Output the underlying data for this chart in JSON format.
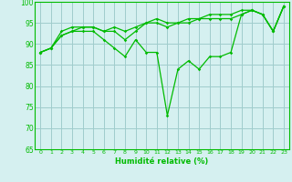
{
  "line1": [
    88,
    89,
    92,
    93,
    93,
    93,
    91,
    89,
    87,
    91,
    88,
    88,
    73,
    84,
    86,
    84,
    87,
    87,
    88,
    97,
    98,
    97,
    93,
    99
  ],
  "line2": [
    88,
    89,
    92,
    93,
    94,
    94,
    93,
    93,
    91,
    93,
    95,
    95,
    94,
    95,
    95,
    96,
    96,
    96,
    96,
    97,
    98,
    97,
    93,
    99
  ],
  "line3": [
    88,
    89,
    93,
    94,
    94,
    94,
    93,
    94,
    93,
    94,
    95,
    96,
    95,
    95,
    96,
    96,
    97,
    97,
    97,
    98,
    98,
    97,
    93,
    99
  ],
  "x": [
    0,
    1,
    2,
    3,
    4,
    5,
    6,
    7,
    8,
    9,
    10,
    11,
    12,
    13,
    14,
    15,
    16,
    17,
    18,
    19,
    20,
    21,
    22,
    23
  ],
  "xlabel": "Humidité relative (%)",
  "ylim": [
    65,
    100
  ],
  "yticks": [
    65,
    70,
    75,
    80,
    85,
    90,
    95,
    100
  ],
  "xticks": [
    0,
    1,
    2,
    3,
    4,
    5,
    6,
    7,
    8,
    9,
    10,
    11,
    12,
    13,
    14,
    15,
    16,
    17,
    18,
    19,
    20,
    21,
    22,
    23
  ],
  "line_color": "#00bb00",
  "bg_color": "#d5f0f0",
  "grid_color": "#a0cccc",
  "marker": "D",
  "markersize": 1.8,
  "linewidth": 0.9
}
